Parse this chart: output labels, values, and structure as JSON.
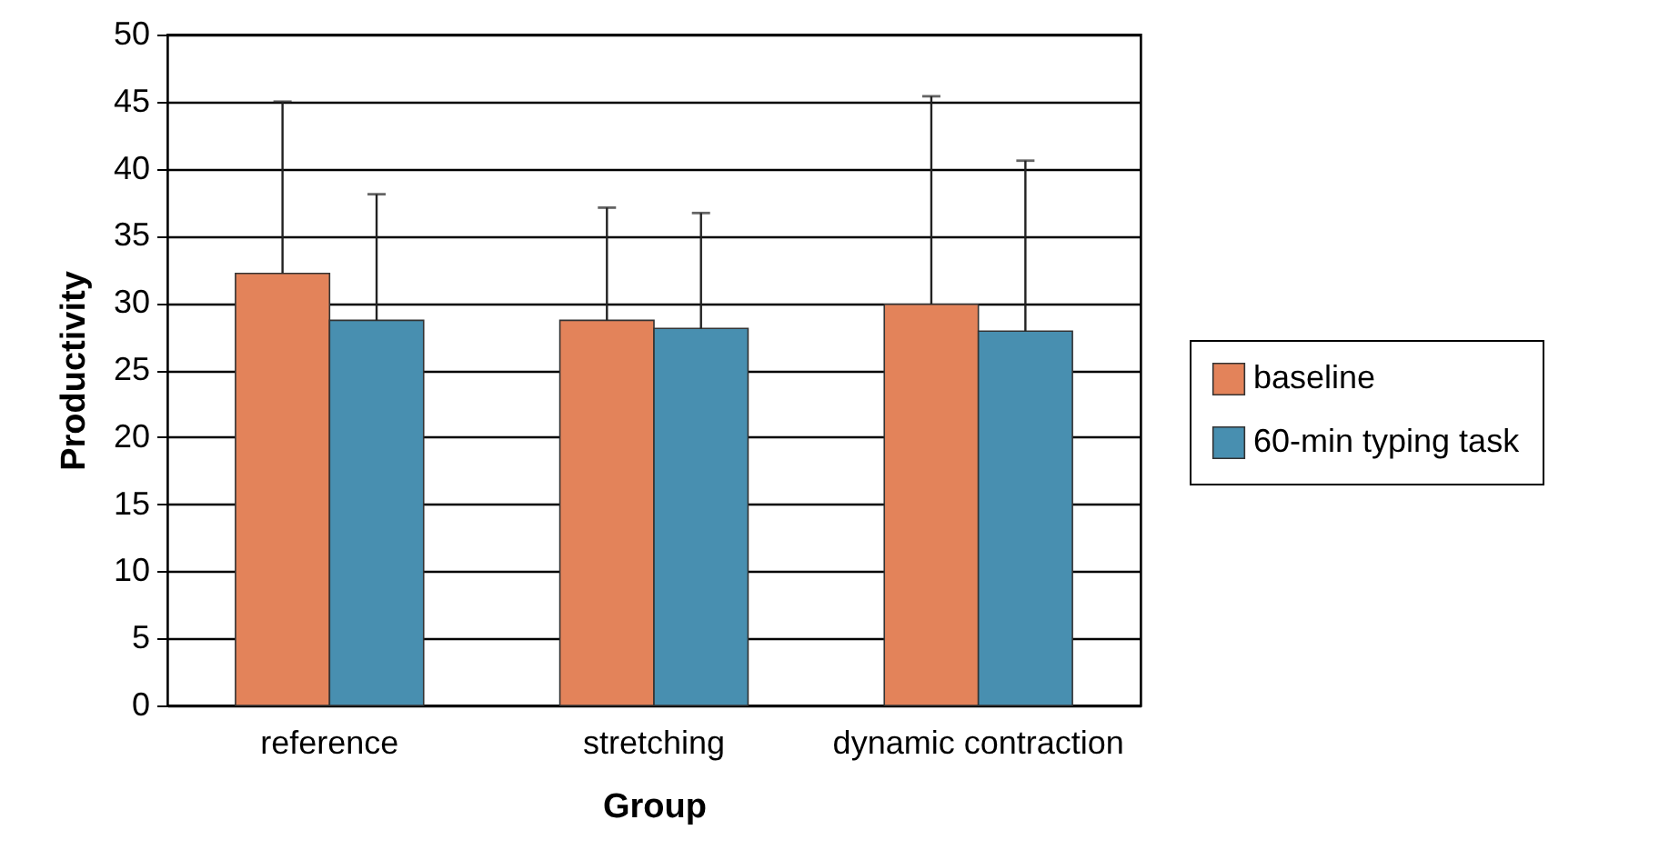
{
  "chart_data": {
    "type": "bar",
    "xlabel": "Group",
    "ylabel": "Productivity",
    "categories": [
      "reference",
      "stretching",
      "dynamic contraction"
    ],
    "series": [
      {
        "name": "baseline",
        "color": "#e3835a",
        "values": [
          32.2,
          28.7,
          29.9
        ],
        "errors": [
          [
            32.2,
            45.0
          ],
          [
            28.7,
            37.1
          ],
          [
            29.9,
            45.4
          ]
        ]
      },
      {
        "name": "60-min typing task",
        "color": "#488fb0",
        "values": [
          28.7,
          28.1,
          27.9
        ],
        "errors": [
          [
            28.7,
            38.1
          ],
          [
            28.1,
            36.7
          ],
          [
            27.9,
            40.6
          ]
        ]
      }
    ],
    "ylim": [
      0,
      50
    ],
    "yticks": [
      0,
      5,
      10,
      15,
      20,
      25,
      30,
      35,
      40,
      45,
      50
    ],
    "grid": "y",
    "legend": "right"
  }
}
